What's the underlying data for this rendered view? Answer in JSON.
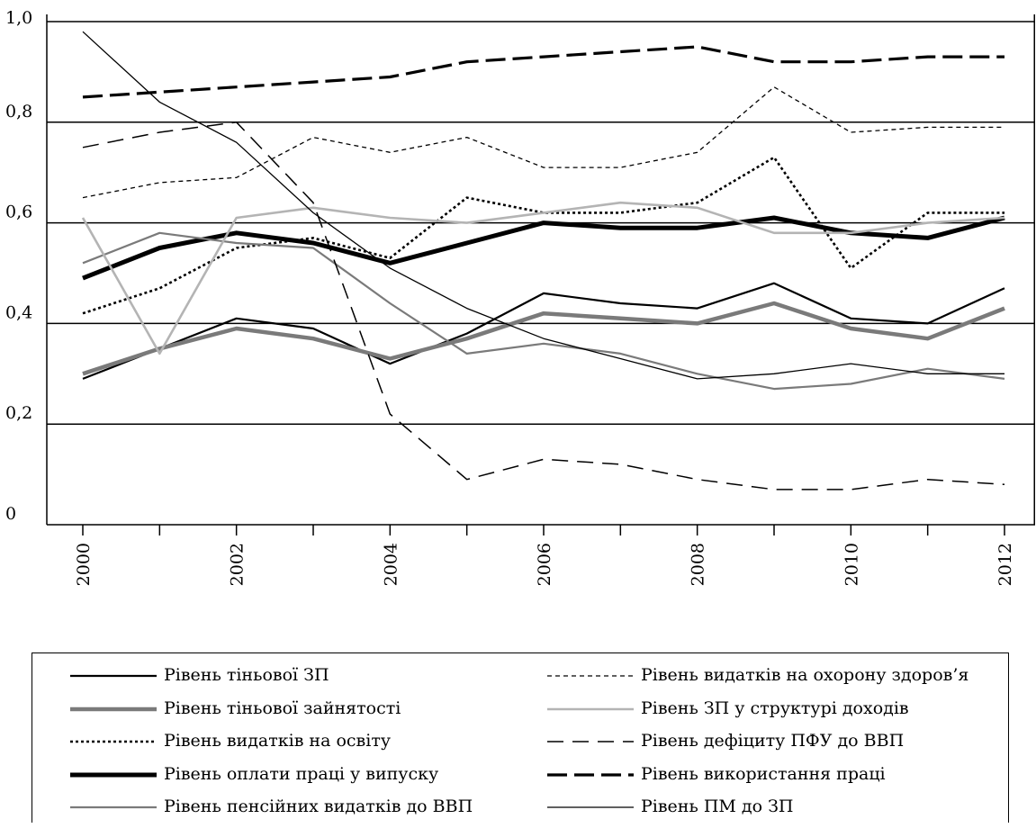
{
  "chart_data": {
    "type": "line",
    "x": [
      2000,
      2001,
      2002,
      2003,
      2004,
      2005,
      2006,
      2007,
      2008,
      2009,
      2010,
      2011,
      2012
    ],
    "xticks": [
      "2000",
      "2002",
      "2004",
      "2006",
      "2008",
      "2010",
      "2012"
    ],
    "yticks": [
      "0",
      "0,2",
      "0,4",
      "0,6",
      "0,8",
      "1,0"
    ],
    "ylim": [
      0,
      1.0
    ],
    "grid": "horizontal",
    "legend_position": "bottom",
    "series": [
      {
        "name": "Рівень тіньової ЗП",
        "values": [
          0.29,
          0.35,
          0.41,
          0.39,
          0.32,
          0.38,
          0.46,
          0.44,
          0.43,
          0.48,
          0.41,
          0.4,
          0.47
        ],
        "color": "#000000",
        "style": "solid-thin"
      },
      {
        "name": "Рівень тіньової зайнятості",
        "values": [
          0.3,
          0.35,
          0.39,
          0.37,
          0.33,
          0.37,
          0.42,
          0.41,
          0.4,
          0.44,
          0.39,
          0.37,
          0.43
        ],
        "color": "#7a7a7a",
        "style": "solid-thick"
      },
      {
        "name": "Рівень видатків на освіту",
        "values": [
          0.42,
          0.47,
          0.55,
          0.57,
          0.53,
          0.65,
          0.62,
          0.62,
          0.64,
          0.73,
          0.51,
          0.62,
          0.62
        ],
        "color": "#000000",
        "style": "dotted"
      },
      {
        "name": "Рівень оплати праці у випуску",
        "values": [
          0.49,
          0.55,
          0.58,
          0.56,
          0.52,
          0.56,
          0.6,
          0.59,
          0.59,
          0.61,
          0.58,
          0.57,
          0.61
        ],
        "color": "#000000",
        "style": "solid-thickest"
      },
      {
        "name": "Рівень пенсійних видатків до ВВП",
        "values": [
          0.52,
          0.58,
          0.56,
          0.55,
          0.44,
          0.34,
          0.36,
          0.34,
          0.3,
          0.27,
          0.28,
          0.31,
          0.29
        ],
        "color": "#7a7a7a",
        "style": "solid-thin"
      },
      {
        "name": "Рівень видатків на охорону здоров’я",
        "values": [
          0.65,
          0.68,
          0.69,
          0.77,
          0.74,
          0.77,
          0.71,
          0.71,
          0.74,
          0.87,
          0.78,
          0.79,
          0.79
        ],
        "color": "#000000",
        "style": "short-dash"
      },
      {
        "name": "Рівень ЗП у структурі доходів",
        "values": [
          0.61,
          0.34,
          0.61,
          0.63,
          0.61,
          0.6,
          0.62,
          0.64,
          0.63,
          0.58,
          0.58,
          0.6,
          0.61
        ],
        "color": "#b4b4b4",
        "style": "solid"
      },
      {
        "name": "Рівень дефіциту ПФУ до ВВП",
        "values": [
          0.75,
          0.78,
          0.8,
          0.64,
          0.22,
          0.09,
          0.13,
          0.12,
          0.09,
          0.07,
          0.07,
          0.09,
          0.08
        ],
        "color": "#000000",
        "style": "long-dash"
      },
      {
        "name": "Рівень використання праці",
        "values": [
          0.85,
          0.86,
          0.87,
          0.88,
          0.89,
          0.92,
          0.93,
          0.94,
          0.95,
          0.92,
          0.92,
          0.93,
          0.93
        ],
        "color": "#000000",
        "style": "dash-thick"
      },
      {
        "name": "Рівень ПМ до ЗП",
        "values": [
          0.98,
          0.84,
          0.76,
          0.62,
          0.51,
          0.43,
          0.37,
          0.33,
          0.29,
          0.3,
          0.32,
          0.3,
          0.3
        ],
        "color": "#000000",
        "style": "solid-hair"
      }
    ]
  }
}
